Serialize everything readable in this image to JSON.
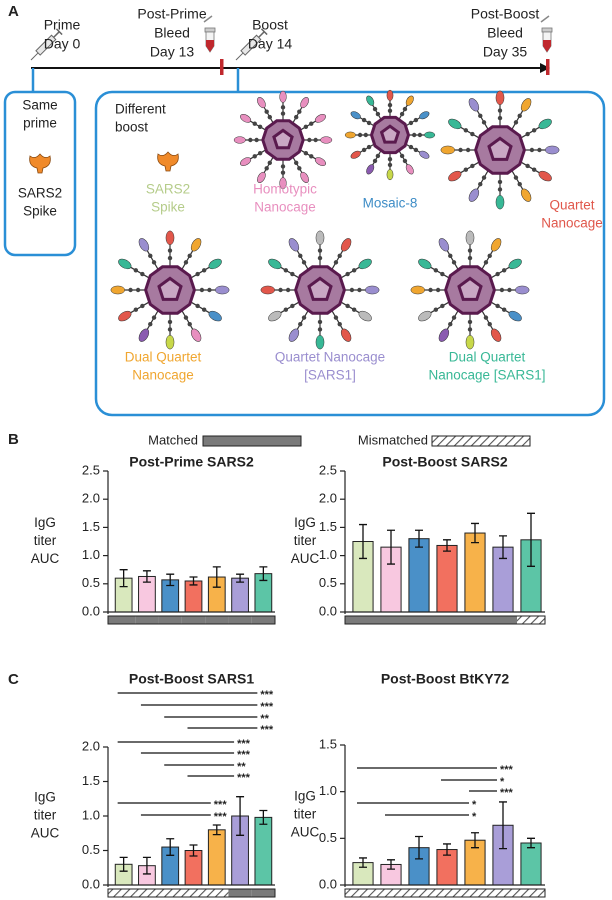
{
  "panel_a": {
    "label": "A",
    "timeline": [
      {
        "lines": [
          "Prime",
          "Day 0"
        ]
      },
      {
        "lines": [
          "Post-Prime",
          "Bleed",
          "Day 13"
        ]
      },
      {
        "lines": [
          "Boost",
          "Day 14"
        ]
      },
      {
        "lines": [
          "Post-Boost",
          "Bleed",
          "Day 35"
        ]
      }
    ],
    "same_prime": {
      "heading": [
        "Same",
        "prime"
      ],
      "label": [
        "SARS2",
        "Spike"
      ]
    },
    "different_boost": {
      "heading": [
        "Different",
        "boost"
      ],
      "immunogens": [
        {
          "lines": [
            "SARS2",
            "Spike"
          ],
          "color": "#b5cc8a"
        },
        {
          "lines": [
            "Homotypic",
            "Nanocage"
          ],
          "color": "#e88fbf"
        },
        {
          "lines": [
            "Mosaic-8"
          ],
          "color": "#3d8cc6"
        },
        {
          "lines": [
            "Quartet",
            "Nanocage"
          ],
          "color": "#e0574b"
        },
        {
          "lines": [
            "Dual Quartet",
            "Nanocage"
          ],
          "color": "#f0a630"
        },
        {
          "lines": [
            "Quartet Nanocage",
            "[SARS1]"
          ],
          "color": "#9a8ecf"
        },
        {
          "lines": [
            "Dual Quartet",
            "Nanocage [SARS1]"
          ],
          "color": "#38b896"
        }
      ]
    }
  },
  "panel_b": {
    "label": "B",
    "legend": [
      {
        "name": "Matched",
        "style": "solid"
      },
      {
        "name": "Mismatched",
        "style": "hatched"
      }
    ]
  },
  "panel_c": {
    "label": "C"
  },
  "chart_data": [
    {
      "type": "bar",
      "title": "Post-Prime SARS2",
      "ylabel": [
        "IgG",
        "titer",
        "AUC"
      ],
      "categories": [
        null,
        null,
        null,
        null,
        null,
        null,
        null
      ],
      "values": [
        0.6,
        0.63,
        0.57,
        0.55,
        0.62,
        0.6,
        0.68
      ],
      "errors": [
        0.15,
        0.1,
        0.1,
        0.07,
        0.18,
        0.07,
        0.12
      ],
      "colors": [
        "#d9e8bd",
        "#f8c8e0",
        "#4a90c8",
        "#f2705f",
        "#f7b24a",
        "#a99ed8",
        "#5cc5a6"
      ],
      "matched": [
        true,
        true,
        true,
        true,
        true,
        true,
        true
      ],
      "ylim": [
        0,
        2.5
      ],
      "yticks": [
        {
          "value": 0,
          "label": "0.0"
        },
        0.5,
        {
          "value": 1,
          "label": "1.0"
        },
        1.5,
        {
          "value": 2,
          "label": "2.0"
        },
        2.5
      ]
    },
    {
      "type": "bar",
      "title": "Post-Boost SARS2",
      "ylabel": [
        "IgG",
        "titer",
        "AUC"
      ],
      "categories": [
        null,
        null,
        null,
        null,
        null,
        null,
        null
      ],
      "values": [
        1.25,
        1.15,
        1.3,
        1.18,
        1.4,
        1.15,
        1.28
      ],
      "errors": [
        0.3,
        0.3,
        0.15,
        0.1,
        0.17,
        0.2,
        0.47
      ],
      "colors": [
        "#d9e8bd",
        "#f8c8e0",
        "#4a90c8",
        "#f2705f",
        "#f7b24a",
        "#a99ed8",
        "#5cc5a6"
      ],
      "matched": [
        true,
        true,
        true,
        true,
        true,
        true,
        false
      ],
      "ylim": [
        0,
        2.5
      ],
      "yticks": [
        {
          "value": 0,
          "label": "0.0"
        },
        0.5,
        {
          "value": 1,
          "label": "1.0"
        },
        1.5,
        {
          "value": 2,
          "label": "2.0"
        },
        2.5
      ]
    },
    {
      "type": "bar",
      "title": "Post-Boost SARS1",
      "ylabel": [
        "IgG",
        "titer",
        "AUC"
      ],
      "categories": [
        null,
        null,
        null,
        null,
        null,
        null,
        null
      ],
      "values": [
        0.3,
        0.28,
        0.55,
        0.5,
        0.8,
        1.0,
        0.98
      ],
      "errors": [
        0.1,
        0.12,
        0.12,
        0.08,
        0.07,
        0.28,
        0.1
      ],
      "colors": [
        "#d9e8bd",
        "#f8c8e0",
        "#4a90c8",
        "#f2705f",
        "#f7b24a",
        "#a99ed8",
        "#5cc5a6"
      ],
      "matched": [
        false,
        false,
        false,
        false,
        false,
        true,
        true
      ],
      "ylim": [
        0,
        2
      ],
      "yticks": [
        {
          "value": 0,
          "label": "0.0"
        },
        0.5,
        {
          "value": 1,
          "label": "1.0"
        },
        1.5,
        {
          "value": 2,
          "label": "2.0"
        }
      ],
      "annotations": [
        {
          "text": "***"
        },
        {
          "text": "***"
        },
        {
          "text": "**"
        },
        {
          "text": "***"
        },
        {
          "text": "***"
        },
        {
          "text": "***"
        },
        {
          "text": "**"
        },
        {
          "text": "***"
        },
        {
          "text": "***"
        },
        {
          "text": "***"
        }
      ]
    },
    {
      "type": "bar",
      "title": "Post-Boost BtKY72",
      "ylabel": [
        "IgG",
        "titer",
        "AUC"
      ],
      "categories": [
        null,
        null,
        null,
        null,
        null,
        null,
        null
      ],
      "values": [
        0.24,
        0.22,
        0.4,
        0.38,
        0.48,
        0.64,
        0.45
      ],
      "errors": [
        0.05,
        0.05,
        0.12,
        0.06,
        0.08,
        0.25,
        0.05
      ],
      "colors": [
        "#d9e8bd",
        "#f8c8e0",
        "#4a90c8",
        "#f2705f",
        "#f7b24a",
        "#a99ed8",
        "#5cc5a6"
      ],
      "matched": [
        false,
        false,
        false,
        false,
        false,
        false,
        false
      ],
      "ylim": [
        0,
        1.5
      ],
      "yticks": [
        {
          "value": 0,
          "label": "0.0"
        },
        0.5,
        {
          "value": 1,
          "label": "1.0"
        },
        1.5
      ],
      "annotations": [
        {
          "text": "***"
        },
        {
          "text": "*"
        },
        {
          "text": "***"
        },
        {
          "text": "*"
        },
        {
          "text": "*"
        }
      ]
    }
  ]
}
